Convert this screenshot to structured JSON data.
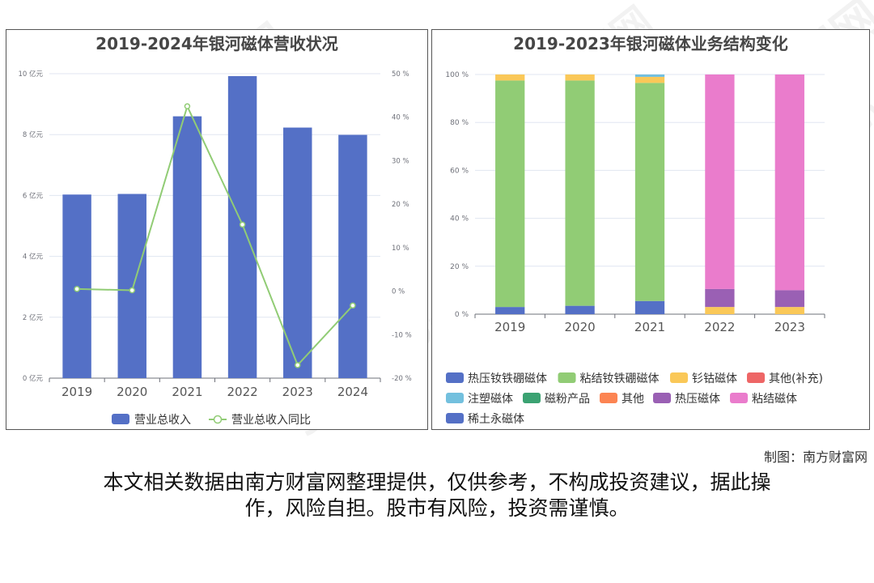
{
  "credit": "制图：南方财富网",
  "disclaimer": {
    "line1": "本文相关数据由南方财富网整理提供，仅供参考，不构成投资建议，据此操",
    "line2": "作，风险自担。股市有风险，投资需谨慎。"
  },
  "watermark": {
    "cn": "南方财富网",
    "en": "Southmoney.com"
  },
  "colors": {
    "blue": "#5470c6",
    "green": "#91cc75",
    "yellow": "#fac858",
    "red": "#ee6666",
    "cyan": "#73c0de",
    "teal": "#3ba272",
    "orange": "#fc8452",
    "purple": "#9a60b4",
    "pink": "#ea7ccc"
  },
  "chart_data": [
    {
      "type": "bar",
      "title": "2019-2024年银河磁体营收状况",
      "categories": [
        "2019",
        "2020",
        "2021",
        "2022",
        "2023",
        "2024"
      ],
      "left_axis": {
        "ticks": [
          "0 亿元",
          "2 亿元",
          "4 亿元",
          "6 亿元",
          "8 亿元",
          "10 亿元"
        ],
        "ylim": [
          0,
          10
        ]
      },
      "right_axis": {
        "ticks": [
          "-20 %",
          "-10 %",
          "0 %",
          "10 %",
          "20 %",
          "30 %",
          "40 %",
          "50 %"
        ],
        "ylim": [
          -20,
          50
        ]
      },
      "series": [
        {
          "name": "营业总收入",
          "kind": "bar",
          "axis": "left",
          "color": "#5470c6",
          "values": [
            6.03,
            6.05,
            8.6,
            9.92,
            8.23,
            7.99
          ]
        },
        {
          "name": "营业总收入同比",
          "kind": "line",
          "axis": "right",
          "color": "#91cc75",
          "values": [
            0.5,
            0.2,
            42.5,
            15.3,
            -17.0,
            -3.3
          ]
        }
      ],
      "legend_position": "bottom"
    },
    {
      "type": "bar",
      "stacked": true,
      "title": "2019-2023年银河磁体业务结构变化",
      "categories": [
        "2019",
        "2020",
        "2021",
        "2022",
        "2023"
      ],
      "y_axis": {
        "ticks": [
          "0 %",
          "20 %",
          "40 %",
          "60 %",
          "80 %",
          "100 %"
        ],
        "ylim": [
          0,
          100
        ]
      },
      "series": [
        {
          "name": "热压钕铁硼磁体",
          "color": "#5470c6",
          "values": [
            3,
            3.5,
            5.5,
            0,
            0
          ]
        },
        {
          "name": "粘结钕铁硼磁体",
          "color": "#91cc75",
          "values": [
            94.5,
            94,
            91,
            0,
            0
          ]
        },
        {
          "name": "钐钴磁体",
          "color": "#fac858",
          "values": [
            2.5,
            2.5,
            2.5,
            3,
            3
          ]
        },
        {
          "name": "其他(补充)",
          "color": "#ee6666",
          "values": [
            0,
            0,
            0,
            0,
            0
          ]
        },
        {
          "name": "注塑磁体",
          "color": "#73c0de",
          "values": [
            0,
            0,
            1,
            0,
            0
          ]
        },
        {
          "name": "磁粉产品",
          "color": "#3ba272",
          "values": [
            0,
            0,
            0,
            0,
            0
          ]
        },
        {
          "name": "其他",
          "color": "#fc8452",
          "values": [
            0,
            0,
            0,
            0,
            0
          ]
        },
        {
          "name": "热压磁体",
          "color": "#9a60b4",
          "values": [
            0,
            0,
            0,
            7.5,
            7
          ]
        },
        {
          "name": "粘结磁体",
          "color": "#ea7ccc",
          "values": [
            0,
            0,
            0,
            89.5,
            90
          ]
        },
        {
          "name": "稀土永磁体",
          "color": "#5470c6",
          "values": [
            0,
            0,
            0,
            0,
            0
          ]
        }
      ],
      "legend_position": "bottom"
    }
  ]
}
